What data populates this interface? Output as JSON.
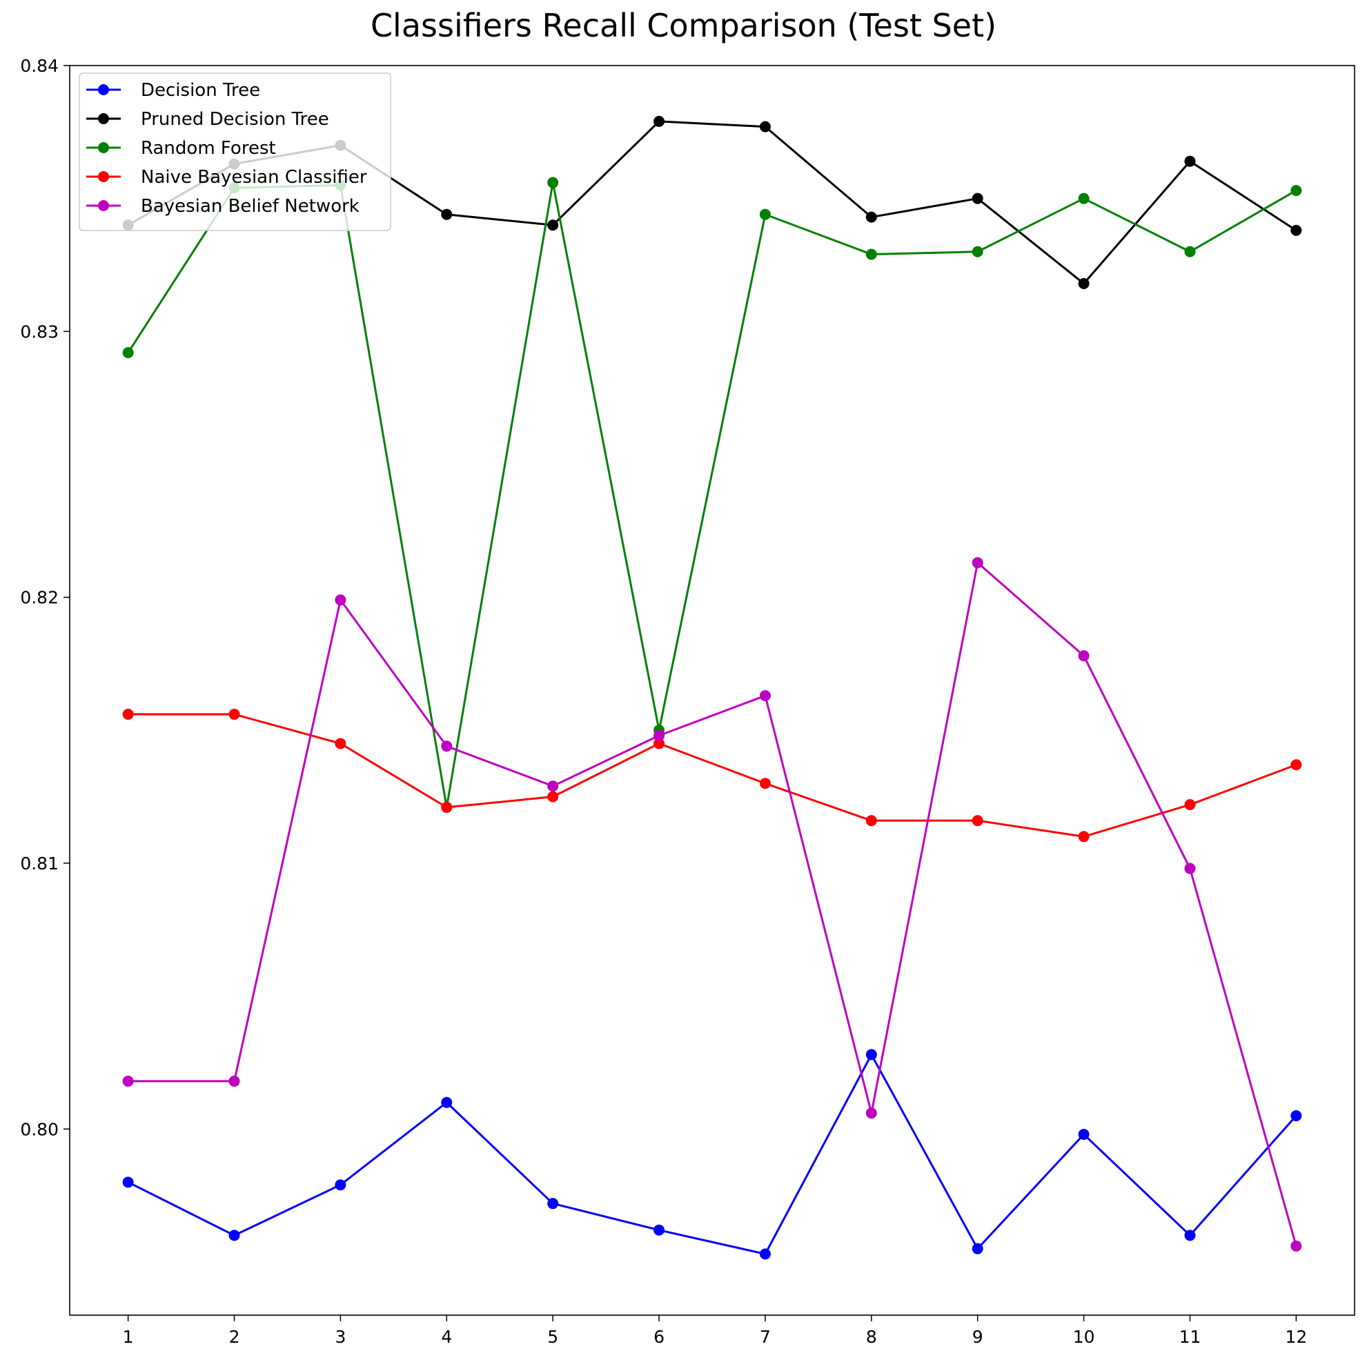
{
  "chart_data": {
    "type": "line",
    "title": "Classifiers Recall Comparison (Test Set)",
    "xlabel": "",
    "ylabel": "",
    "x": [
      1,
      2,
      3,
      4,
      5,
      6,
      7,
      8,
      9,
      10,
      11,
      12
    ],
    "ylim": [
      0.793,
      0.84
    ],
    "yticks": [
      0.8,
      0.81,
      0.82,
      0.83,
      0.84
    ],
    "ytick_labels": [
      "0.80",
      "0.81",
      "0.82",
      "0.83",
      "0.84"
    ],
    "legend_position": "upper-left",
    "grid": false,
    "series": [
      {
        "name": "Decision Tree",
        "color": "#0000ff",
        "values": [
          0.798,
          0.796,
          0.7979,
          0.801,
          0.7972,
          0.7962,
          0.7953,
          0.8028,
          0.7955,
          0.7998,
          0.796,
          0.8005
        ]
      },
      {
        "name": "Pruned Decision Tree",
        "color": "#000000",
        "values": [
          0.834,
          0.8363,
          0.837,
          0.8344,
          0.834,
          0.8379,
          0.8377,
          0.8343,
          0.835,
          0.8318,
          0.8364,
          0.8338
        ]
      },
      {
        "name": "Random Forest",
        "color": "#008000",
        "values": [
          0.8292,
          0.8354,
          0.8355,
          0.8121,
          0.8356,
          0.815,
          0.8344,
          0.8329,
          0.833,
          0.835,
          0.833,
          0.8353
        ]
      },
      {
        "name": "Naive Bayesian Classifier",
        "color": "#ff0000",
        "values": [
          0.8156,
          0.8156,
          0.8145,
          0.8121,
          0.8125,
          0.8145,
          0.813,
          0.8116,
          0.8116,
          0.811,
          0.8122,
          0.8137
        ]
      },
      {
        "name": "Bayesian Belief Network",
        "color": "#bf00bf",
        "values": [
          0.8018,
          0.8018,
          0.8199,
          0.8144,
          0.8129,
          0.8148,
          0.8163,
          0.8006,
          0.8213,
          0.8178,
          0.8098,
          0.7956
        ]
      }
    ]
  }
}
